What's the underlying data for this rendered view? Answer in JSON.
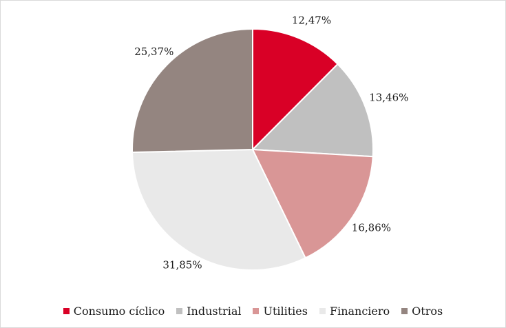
{
  "chart_data": {
    "type": "pie",
    "title": "",
    "series": [
      {
        "name": "Consumo cíclico",
        "value": 12.47,
        "label": "12,47%",
        "color": "#d90026"
      },
      {
        "name": "Industrial",
        "value": 13.46,
        "label": "13,46%",
        "color": "#c0c0c0"
      },
      {
        "name": "Utilities",
        "value": 16.86,
        "label": "16,86%",
        "color": "#d99696"
      },
      {
        "name": "Financiero",
        "value": 31.85,
        "label": "31,85%",
        "color": "#e9e9e9"
      },
      {
        "name": "Otros",
        "value": 25.37,
        "label": "25,37%",
        "color": "#948580"
      }
    ],
    "legend": {
      "placement": "bottom"
    }
  }
}
